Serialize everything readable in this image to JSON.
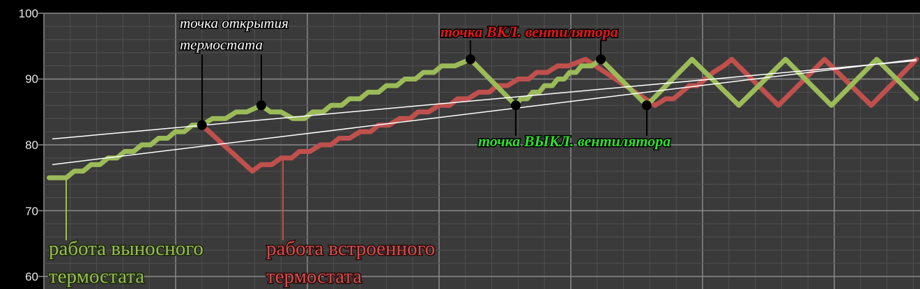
{
  "chart_data": {
    "type": "line",
    "title": "",
    "xlabel": "",
    "ylabel": "",
    "xlim": [
      0,
      33.25
    ],
    "ylim": [
      60,
      100
    ],
    "yticks": [
      "60",
      "70",
      "80",
      "90",
      "100"
    ],
    "grid": true,
    "colors": {
      "remote": "#9bbb59",
      "builtin": "#c0504d",
      "trend": "#ffffff",
      "marker": "#000000",
      "background": "#3a3a3a"
    },
    "series": [
      {
        "key": "builtin",
        "color": "#c0504d",
        "points": [
          [
            6.0,
            83
          ],
          [
            7.91,
            76
          ],
          [
            8.25,
            77
          ],
          [
            8.65,
            77
          ],
          [
            9.0,
            78
          ],
          [
            9.4,
            78
          ],
          [
            9.7,
            79
          ],
          [
            10.1,
            79
          ],
          [
            10.5,
            80
          ],
          [
            10.9,
            80
          ],
          [
            11.2,
            81
          ],
          [
            11.6,
            81
          ],
          [
            12.0,
            82
          ],
          [
            12.4,
            82
          ],
          [
            12.7,
            83
          ],
          [
            13.1,
            83
          ],
          [
            13.5,
            84
          ],
          [
            13.9,
            84
          ],
          [
            14.2,
            85
          ],
          [
            14.6,
            85
          ],
          [
            15.0,
            86
          ],
          [
            15.4,
            86
          ],
          [
            15.7,
            87
          ],
          [
            16.1,
            87
          ],
          [
            16.5,
            88
          ],
          [
            16.9,
            88
          ],
          [
            17.2,
            89
          ],
          [
            17.6,
            89
          ],
          [
            18.0,
            90
          ],
          [
            18.4,
            90
          ],
          [
            18.7,
            91
          ],
          [
            19.1,
            91
          ],
          [
            19.5,
            92
          ],
          [
            19.9,
            92
          ],
          [
            20.56,
            93
          ],
          [
            23.2,
            86
          ],
          [
            23.6,
            87
          ],
          [
            23.9,
            87
          ],
          [
            24.2,
            88
          ],
          [
            24.5,
            89
          ],
          [
            24.8,
            89
          ],
          [
            25.1,
            90
          ],
          [
            25.4,
            91
          ],
          [
            25.8,
            92
          ],
          [
            26.11,
            93
          ],
          [
            27.88,
            86
          ],
          [
            29.63,
            93
          ],
          [
            31.4,
            86
          ],
          [
            33.12,
            93
          ]
        ]
      },
      {
        "key": "remote",
        "color": "#9bbb59",
        "points": [
          [
            0.2,
            75
          ],
          [
            0.85,
            75
          ],
          [
            1.15,
            76
          ],
          [
            1.49,
            76
          ],
          [
            1.79,
            77
          ],
          [
            2.13,
            77
          ],
          [
            2.43,
            78
          ],
          [
            2.77,
            78
          ],
          [
            3.07,
            79
          ],
          [
            3.41,
            79
          ],
          [
            3.71,
            80
          ],
          [
            4.05,
            80
          ],
          [
            4.35,
            81
          ],
          [
            4.69,
            81
          ],
          [
            4.99,
            82
          ],
          [
            5.33,
            82
          ],
          [
            5.63,
            83
          ],
          [
            6.0,
            83
          ],
          [
            6.4,
            84
          ],
          [
            6.9,
            84
          ],
          [
            7.3,
            85
          ],
          [
            7.7,
            85
          ],
          [
            8.25,
            86
          ],
          [
            8.6,
            85
          ],
          [
            9.0,
            85
          ],
          [
            9.44,
            84
          ],
          [
            9.9,
            84
          ],
          [
            10.2,
            85
          ],
          [
            10.6,
            85
          ],
          [
            10.9,
            86
          ],
          [
            11.3,
            86
          ],
          [
            11.6,
            87
          ],
          [
            12.0,
            87
          ],
          [
            12.3,
            88
          ],
          [
            12.7,
            88
          ],
          [
            13.0,
            89
          ],
          [
            13.4,
            89
          ],
          [
            13.7,
            90
          ],
          [
            14.1,
            90
          ],
          [
            14.4,
            91
          ],
          [
            14.8,
            91
          ],
          [
            15.1,
            92
          ],
          [
            15.6,
            92
          ],
          [
            16.19,
            93
          ],
          [
            17.91,
            86
          ],
          [
            18.1,
            87
          ],
          [
            18.35,
            87
          ],
          [
            18.55,
            88
          ],
          [
            18.8,
            88
          ],
          [
            19.0,
            89
          ],
          [
            19.3,
            89
          ],
          [
            19.5,
            90
          ],
          [
            19.75,
            90
          ],
          [
            19.95,
            91
          ],
          [
            20.2,
            91
          ],
          [
            20.4,
            92
          ],
          [
            20.8,
            92
          ],
          [
            21.14,
            93
          ],
          [
            22.88,
            86
          ],
          [
            24.6,
            93
          ],
          [
            26.38,
            86
          ],
          [
            28.15,
            93
          ],
          [
            29.89,
            86
          ],
          [
            31.61,
            93
          ],
          [
            33.12,
            87
          ]
        ]
      }
    ],
    "trendlines": [
      {
        "from": [
          0.32,
          80.9
        ],
        "to": [
          33.12,
          92.8
        ]
      },
      {
        "from": [
          0.32,
          77.0
        ],
        "to": [
          33.12,
          93.0
        ]
      }
    ],
    "markers": [
      [
        6.0,
        83
      ],
      [
        8.25,
        86
      ],
      [
        16.19,
        93
      ],
      [
        17.91,
        86
      ],
      [
        21.14,
        93
      ],
      [
        22.88,
        86
      ]
    ],
    "annotations": {
      "thermostat_open": [
        "точка открытия",
        "термостата"
      ],
      "fan_on": "точка ВКЛ. вентилятора",
      "fan_off": "точка ВЫКЛ. вентилятора",
      "remote_label": [
        "работа выносного",
        "термостата"
      ],
      "builtin_label": [
        "работа встроенного",
        "термостата"
      ]
    }
  }
}
